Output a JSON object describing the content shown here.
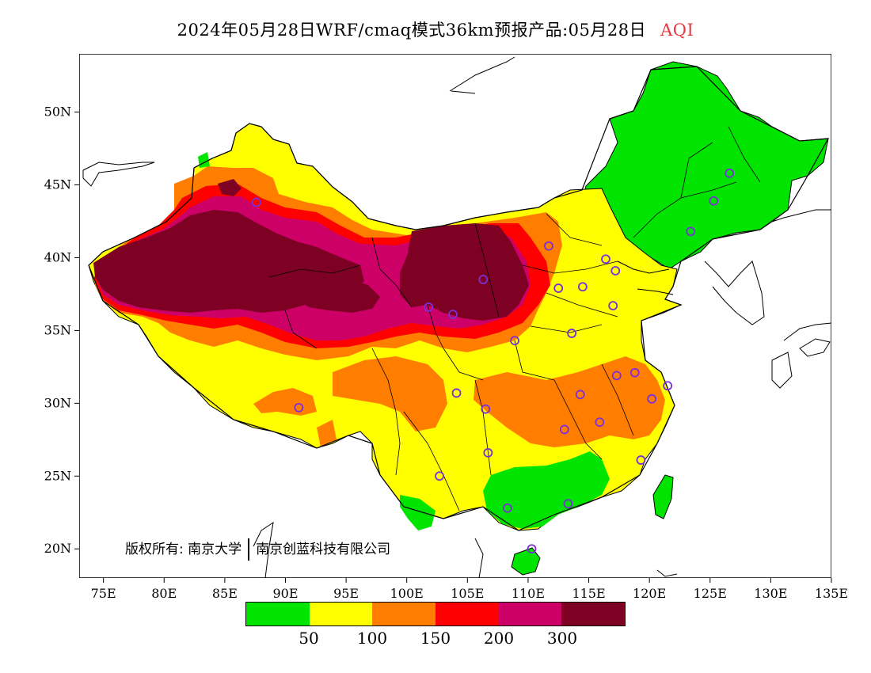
{
  "header": {
    "title": "2024年05月28日WRF/cmaq模式36km预报产品:05月28日",
    "variable": "AQI"
  },
  "map": {
    "lon_ticks": [
      "75E",
      "80E",
      "85E",
      "90E",
      "95E",
      "100E",
      "105E",
      "110E",
      "115E",
      "120E",
      "125E",
      "130E",
      "135E"
    ],
    "lat_ticks": [
      "20N",
      "25N",
      "30N",
      "35N",
      "40N",
      "45N",
      "50N"
    ],
    "lon_range": [
      73,
      135
    ],
    "lat_range": [
      18,
      54
    ]
  },
  "copyright": {
    "prefix": "版权所有:",
    "org1": "南京大学",
    "org2": "南京创蓝科技有限公司"
  },
  "legend": {
    "colors": [
      "#00e400",
      "#ffff00",
      "#ff7e00",
      "#ff0000",
      "#cc0066",
      "#7e0023"
    ],
    "labels": [
      "50",
      "100",
      "150",
      "200",
      "300"
    ]
  },
  "stations": [
    {
      "lon": 87.6,
      "lat": 43.8
    },
    {
      "lon": 91.1,
      "lat": 29.7
    },
    {
      "lon": 101.8,
      "lat": 36.6
    },
    {
      "lon": 103.8,
      "lat": 36.1
    },
    {
      "lon": 106.3,
      "lat": 38.5
    },
    {
      "lon": 104.1,
      "lat": 30.7
    },
    {
      "lon": 106.5,
      "lat": 29.6
    },
    {
      "lon": 106.7,
      "lat": 26.6
    },
    {
      "lon": 102.7,
      "lat": 25.0
    },
    {
      "lon": 108.3,
      "lat": 22.8
    },
    {
      "lon": 113.3,
      "lat": 23.1
    },
    {
      "lon": 110.3,
      "lat": 20.0
    },
    {
      "lon": 108.9,
      "lat": 34.3
    },
    {
      "lon": 113.6,
      "lat": 34.8
    },
    {
      "lon": 114.3,
      "lat": 30.6
    },
    {
      "lon": 113.0,
      "lat": 28.2
    },
    {
      "lon": 115.9,
      "lat": 28.7
    },
    {
      "lon": 117.3,
      "lat": 31.9
    },
    {
      "lon": 118.8,
      "lat": 32.1
    },
    {
      "lon": 120.2,
      "lat": 30.3
    },
    {
      "lon": 121.5,
      "lat": 31.2
    },
    {
      "lon": 119.3,
      "lat": 26.1
    },
    {
      "lon": 117.0,
      "lat": 36.7
    },
    {
      "lon": 114.5,
      "lat": 38.0
    },
    {
      "lon": 112.5,
      "lat": 37.9
    },
    {
      "lon": 111.7,
      "lat": 40.8
    },
    {
      "lon": 116.4,
      "lat": 39.9
    },
    {
      "lon": 117.2,
      "lat": 39.1
    },
    {
      "lon": 123.4,
      "lat": 41.8
    },
    {
      "lon": 125.3,
      "lat": 43.9
    },
    {
      "lon": 126.6,
      "lat": 45.8
    }
  ]
}
